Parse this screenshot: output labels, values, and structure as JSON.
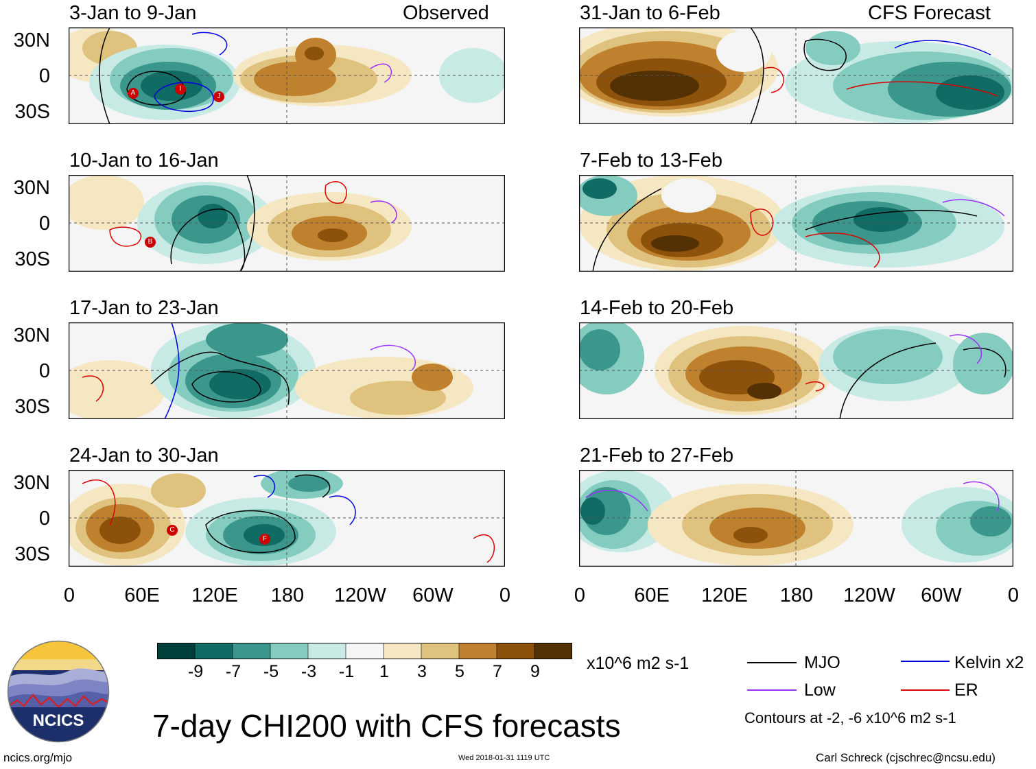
{
  "main_title": "7-day CHI200 with CFS forecasts",
  "section_labels": {
    "observed": "Observed",
    "forecast": "CFS Forecast"
  },
  "panels_observed": [
    {
      "period": "3-Jan to 9-Jan"
    },
    {
      "period": "10-Jan to 16-Jan"
    },
    {
      "period": "17-Jan to 23-Jan"
    },
    {
      "period": "24-Jan to 30-Jan"
    }
  ],
  "panels_forecast": [
    {
      "period": "31-Jan to 6-Feb"
    },
    {
      "period": "7-Feb to 13-Feb"
    },
    {
      "period": "14-Feb to 20-Feb"
    },
    {
      "period": "21-Feb to 27-Feb"
    }
  ],
  "y_axis_labels": [
    "30N",
    "0",
    "30S"
  ],
  "x_axis_labels": [
    "0",
    "60E",
    "120E",
    "180",
    "120W",
    "60W",
    "0"
  ],
  "colorbar": {
    "colors": [
      "#01403a",
      "#0f6b63",
      "#3b968c",
      "#84cbc0",
      "#c8eae5",
      "#f5f5f5",
      "#f6e7c3",
      "#dfc27d",
      "#bf812d",
      "#8c510a",
      "#543005"
    ],
    "labels": [
      "-9",
      "-7",
      "-5",
      "-3",
      "-1",
      "1",
      "3",
      "5",
      "7",
      "9"
    ],
    "units": "x10^6 m2 s-1"
  },
  "legend": {
    "items": [
      {
        "label": "MJO",
        "color": "#000000"
      },
      {
        "label": "Kelvin x2",
        "color": "#0000dd"
      },
      {
        "label": "Low",
        "color": "#9b30ff"
      },
      {
        "label": "ER",
        "color": "#dd0000"
      }
    ],
    "contours_note": "Contours at -2, -6 x10^6 m2 s-1"
  },
  "storm_markers": {
    "panel1": [
      "A",
      "I",
      "J"
    ],
    "panel2": [
      "B"
    ],
    "panel4": [
      "C",
      "F"
    ]
  },
  "logo": {
    "text": "NCICS"
  },
  "footer": {
    "url": "ncics.org/mjo",
    "timestamp": "Wed 2018-01-31 1119 UTC",
    "credit": "Carl Schreck (cjschrec@ncsu.edu)"
  }
}
